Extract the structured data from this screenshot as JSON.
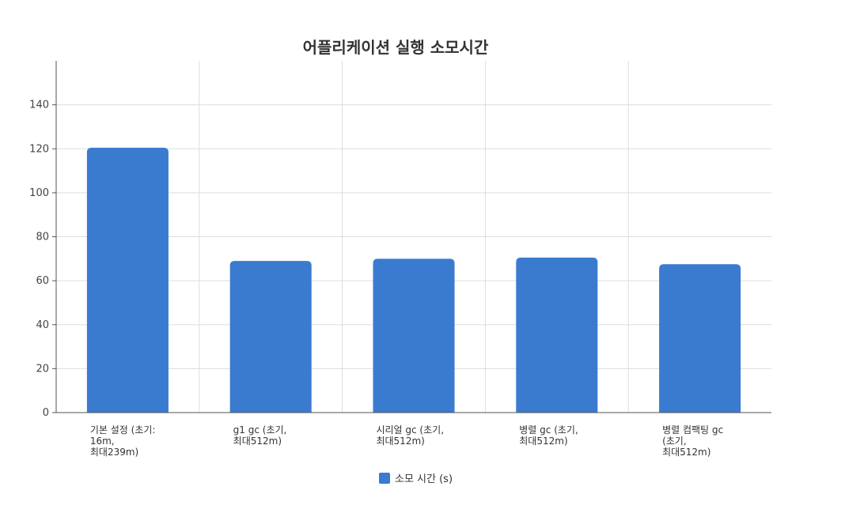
{
  "chart_data": {
    "type": "bar",
    "title": "어플리케이션 실행 소모시간",
    "categories": [
      "기본 설정 (초기: 16m, 최대239m)",
      "g1 gc (초기, 최대512m)",
      "시리얼 gc (초기, 최대512m)",
      "병렬 gc (초기, 최대512m)",
      "병렬 컴팩팅 gc (초기, 최대512m)"
    ],
    "category_lines": [
      [
        "기본 설정 (초기:",
        "16m,",
        "최대239m)"
      ],
      [
        "g1 gc (초기,",
        "최대512m)"
      ],
      [
        "시리얼  gc (초기,",
        "최대512m)"
      ],
      [
        "병렬 gc (초기,",
        "최대512m)"
      ],
      [
        "병렬 컴팩팅 gc",
        "(초기,",
        "최대512m)"
      ]
    ],
    "series": [
      {
        "name": "소모 시간 (s)",
        "values": [
          120.5,
          69,
          70,
          70.5,
          67.5
        ],
        "color": "#3a7bd0"
      }
    ],
    "ylim": [
      0,
      160
    ],
    "yticks": [
      0,
      20,
      40,
      60,
      80,
      100,
      120,
      140
    ],
    "grid": true,
    "legend": "bottom-center"
  }
}
